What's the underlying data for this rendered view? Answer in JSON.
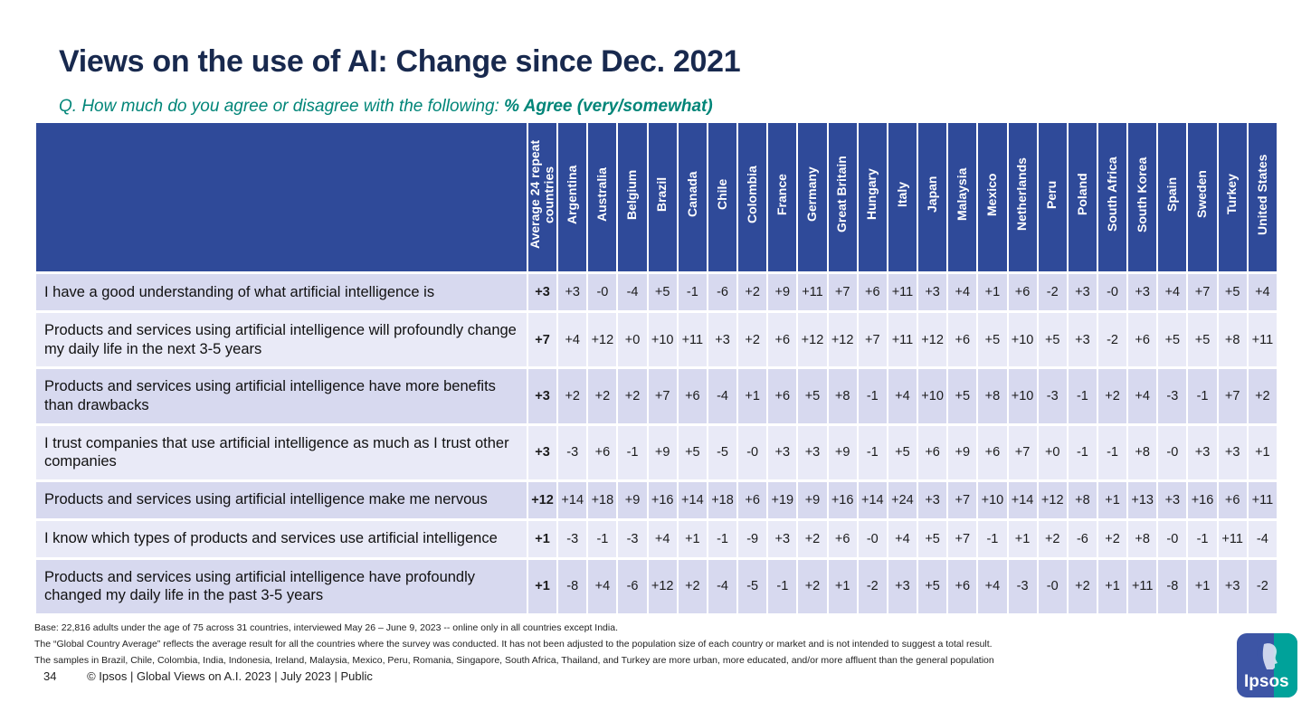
{
  "header": {
    "title": "Views on the use of AI: Change since Dec. 2021",
    "question_prefix": "Q. How much do you agree or disagree with the following: ",
    "question_highlight": "% Agree (very/somewhat)"
  },
  "table": {
    "columns": [
      "Average 24 repeat countries",
      "Argentina",
      "Australia",
      "Belgium",
      "Brazil",
      "Canada",
      "Chile",
      "Colombia",
      "France",
      "Germany",
      "Great Britain",
      "Hungary",
      "Italy",
      "Japan",
      "Malaysia",
      "Mexico",
      "Netherlands",
      "Peru",
      "Poland",
      "South Africa",
      "South Korea",
      "Spain",
      "Sweden",
      "Turkey",
      "United States"
    ],
    "rows": [
      {
        "label": "I have a good understanding of what artificial intelligence is",
        "values": [
          "+3",
          "+3",
          "-0",
          "-4",
          "+5",
          "-1",
          "-6",
          "+2",
          "+9",
          "+11",
          "+7",
          "+6",
          "+11",
          "+3",
          "+4",
          "+1",
          "+6",
          "-2",
          "+3",
          "-0",
          "+3",
          "+4",
          "+7",
          "+5",
          "+4"
        ]
      },
      {
        "label": "Products and services using artificial intelligence will profoundly change my daily life in the next 3-5 years",
        "values": [
          "+7",
          "+4",
          "+12",
          "+0",
          "+10",
          "+11",
          "+3",
          "+2",
          "+6",
          "+12",
          "+12",
          "+7",
          "+11",
          "+12",
          "+6",
          "+5",
          "+10",
          "+5",
          "+3",
          "-2",
          "+6",
          "+5",
          "+5",
          "+8",
          "+11"
        ]
      },
      {
        "label": "Products and services using artificial intelligence have more benefits than drawbacks",
        "values": [
          "+3",
          "+2",
          "+2",
          "+2",
          "+7",
          "+6",
          "-4",
          "+1",
          "+6",
          "+5",
          "+8",
          "-1",
          "+4",
          "+10",
          "+5",
          "+8",
          "+10",
          "-3",
          "-1",
          "+2",
          "+4",
          "-3",
          "-1",
          "+7",
          "+2"
        ]
      },
      {
        "label": "I trust companies that use artificial intelligence as much as I trust other companies",
        "values": [
          "+3",
          "-3",
          "+6",
          "-1",
          "+9",
          "+5",
          "-5",
          "-0",
          "+3",
          "+3",
          "+9",
          "-1",
          "+5",
          "+6",
          "+9",
          "+6",
          "+7",
          "+0",
          "-1",
          "-1",
          "+8",
          "-0",
          "+3",
          "+3",
          "+1"
        ]
      },
      {
        "label": "Products and services using artificial intelligence make me nervous",
        "values": [
          "+12",
          "+14",
          "+18",
          "+9",
          "+16",
          "+14",
          "+18",
          "+6",
          "+19",
          "+9",
          "+16",
          "+14",
          "+24",
          "+3",
          "+7",
          "+10",
          "+14",
          "+12",
          "+8",
          "+1",
          "+13",
          "+3",
          "+16",
          "+6",
          "+11"
        ]
      },
      {
        "label": "I know which types of products and services use artificial intelligence",
        "values": [
          "+1",
          "-3",
          "-1",
          "-3",
          "+4",
          "+1",
          "-1",
          "-9",
          "+3",
          "+2",
          "+6",
          "-0",
          "+4",
          "+5",
          "+7",
          "-1",
          "+1",
          "+2",
          "-6",
          "+2",
          "+8",
          "-0",
          "-1",
          "+11",
          "-4"
        ]
      },
      {
        "label": "Products and services using artificial intelligence have profoundly changed my daily life in the past 3-5 years",
        "values": [
          "+1",
          "-8",
          "+4",
          "-6",
          "+12",
          "+2",
          "-4",
          "-5",
          "-1",
          "+2",
          "+1",
          "-2",
          "+3",
          "+5",
          "+6",
          "+4",
          "-3",
          "-0",
          "+2",
          "+1",
          "+11",
          "-8",
          "+1",
          "+3",
          "-2"
        ]
      }
    ]
  },
  "footnotes": [
    "Base: 22,816 adults under the age of 75 across 31 countries, interviewed May 26 – June 9, 2023 -- online only in all countries except India.",
    "The “Global Country Average” reflects the average result for all the countries where the survey was conducted. It has not been adjusted to the population size of each country or market and is not intended to suggest a total result.",
    "The samples in Brazil, Chile, Colombia, India, Indonesia, Ireland, Malaysia, Mexico, Peru, Romania, Singapore, South Africa, Thailand, and Turkey are more urban, more educated, and/or more affluent than the general population"
  ],
  "footer": {
    "page_number": "34",
    "text": "© Ipsos | Global Views on A.I. 2023 | July 2023 | Public"
  },
  "logo": {
    "text": "Ipsos"
  },
  "colors": {
    "title_navy": "#18294E",
    "subtitle_teal": "#008578",
    "header_blue": "#2F4A99",
    "row_dark": "#D7D9EF",
    "row_light": "#E9EAF7",
    "logo_blue": "#3D55A5",
    "logo_teal": "#00A29A"
  }
}
